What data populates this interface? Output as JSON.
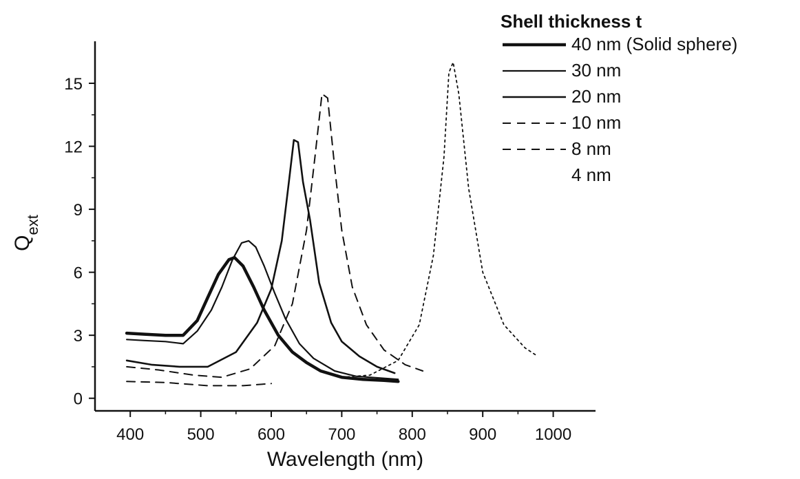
{
  "chart_data": {
    "type": "line",
    "title": "",
    "xlabel": "Wavelength (nm)",
    "ylabel_main": "Q",
    "ylabel_sub": "ext",
    "xlim": [
      350,
      1060
    ],
    "ylim": [
      -0.6,
      17.0
    ],
    "xticks": [
      400,
      500,
      600,
      700,
      800,
      900,
      1000
    ],
    "xtick_labels": [
      "400",
      "500",
      "600",
      "700",
      "800",
      "900",
      "1000"
    ],
    "yticks": [
      0,
      3,
      6,
      9,
      12,
      15
    ],
    "ytick_labels": [
      "0",
      "3",
      "6",
      "9",
      "12",
      "15"
    ],
    "grid": false,
    "legend_title": "Shell thickness t",
    "legend_position": "top-right",
    "series": [
      {
        "name": "40 nm (Solid sphere)",
        "style": "solid",
        "width": 4.5,
        "x": [
          395,
          420,
          450,
          475,
          495,
          510,
          525,
          540,
          548,
          560,
          575,
          590,
          610,
          630,
          650,
          670,
          700,
          730,
          760,
          780
        ],
        "y": [
          3.1,
          3.05,
          3.0,
          3.0,
          3.7,
          4.8,
          5.9,
          6.6,
          6.7,
          6.3,
          5.3,
          4.2,
          3.0,
          2.2,
          1.7,
          1.3,
          1.0,
          0.9,
          0.85,
          0.8
        ]
      },
      {
        "name": "30 nm",
        "style": "solid",
        "width": 2.2,
        "x": [
          395,
          420,
          450,
          475,
          495,
          515,
          530,
          545,
          558,
          568,
          578,
          590,
          605,
          620,
          640,
          660,
          690,
          720,
          760,
          780
        ],
        "y": [
          2.8,
          2.75,
          2.7,
          2.6,
          3.2,
          4.2,
          5.3,
          6.6,
          7.4,
          7.5,
          7.2,
          6.3,
          5.0,
          3.8,
          2.6,
          1.9,
          1.3,
          1.05,
          0.95,
          0.9
        ]
      },
      {
        "name": "20 nm",
        "style": "solid",
        "width": 2.6,
        "x": [
          395,
          430,
          470,
          510,
          550,
          580,
          600,
          615,
          625,
          632,
          638,
          645,
          655,
          668,
          685,
          700,
          725,
          750,
          775
        ],
        "y": [
          1.8,
          1.6,
          1.5,
          1.5,
          2.2,
          3.6,
          5.2,
          7.5,
          10.3,
          12.3,
          12.2,
          10.3,
          8.5,
          5.5,
          3.6,
          2.7,
          2.0,
          1.5,
          1.2
        ]
      },
      {
        "name": "10 nm",
        "style": "dashed",
        "width": 2.0,
        "x": [
          395,
          440,
          490,
          530,
          570,
          605,
          630,
          650,
          662,
          672,
          680,
          690,
          700,
          715,
          735,
          760,
          790,
          815
        ],
        "y": [
          1.5,
          1.35,
          1.1,
          1.0,
          1.4,
          2.5,
          4.5,
          8.0,
          11.5,
          14.5,
          14.3,
          11.0,
          8.0,
          5.3,
          3.5,
          2.3,
          1.6,
          1.3
        ]
      },
      {
        "name": "8 nm",
        "style": "dashed",
        "width": 2.0,
        "x": [
          395,
          450,
          510,
          560,
          600
        ],
        "y": [
          0.8,
          0.75,
          0.6,
          0.6,
          0.7
        ]
      },
      {
        "name": "4 nm",
        "style": "dotted",
        "width": 1.8,
        "x": [
          700,
          740,
          780,
          810,
          830,
          845,
          852,
          858,
          866,
          880,
          900,
          930,
          960,
          978
        ],
        "y": [
          1.0,
          1.1,
          1.8,
          3.5,
          6.8,
          11.5,
          15.5,
          16.0,
          14.5,
          10.0,
          6.0,
          3.5,
          2.4,
          2.0
        ]
      }
    ]
  }
}
